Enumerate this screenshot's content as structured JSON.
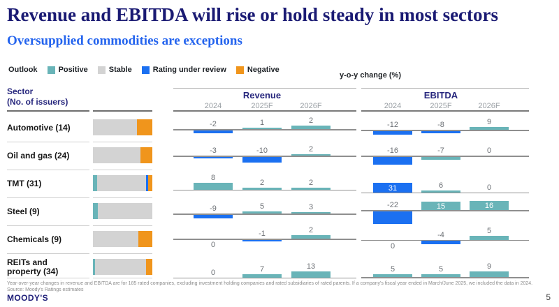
{
  "title": "Revenue and EBITDA will rise or hold steady in most sectors",
  "subtitle": "Oversupplied commodities are exceptions",
  "legend": {
    "label": "Outlook",
    "items": [
      {
        "label": "Positive",
        "color": "#69b4b8"
      },
      {
        "label": "Stable",
        "color": "#d3d3d3"
      },
      {
        "label": "Rating under review",
        "color": "#1b70f1"
      },
      {
        "label": "Negative",
        "color": "#f0951c"
      }
    ]
  },
  "axis_note": "y-o-y change (%)",
  "colors": {
    "teal": "#69b4b8",
    "blue": "#1b70f1",
    "orange": "#f0951c",
    "stable_gray": "#d3d3d3",
    "navy": "#26267d"
  },
  "table": {
    "sector_header_line1": "Sector",
    "sector_header_line2": "(No. of issuers)",
    "sections": [
      {
        "name": "Revenue"
      },
      {
        "name": "EBITDA"
      }
    ],
    "year_cols": [
      "2024",
      "2025F",
      "2026F"
    ]
  },
  "chart_data": {
    "type": "bar",
    "title": "y-o-y change (%)",
    "categories": [
      "2024",
      "2025F",
      "2026F"
    ],
    "rows": [
      {
        "sector": "Automotive (14)",
        "outlook": [
          {
            "status": "stable",
            "pct": 74
          },
          {
            "status": "negative",
            "pct": 26
          }
        ],
        "revenue": {
          "values": [
            -2,
            1,
            2
          ],
          "bar_colors": [
            "blue",
            "teal",
            "teal"
          ],
          "scale": 2.4,
          "baseline_pct": 55,
          "zero_label_below": false,
          "label_inside": [
            false,
            false,
            false
          ]
        },
        "ebitda": {
          "values": [
            -12,
            -8,
            9
          ],
          "bar_colors": [
            "blue",
            "blue",
            "teal"
          ],
          "scale": 0.45,
          "baseline_pct": 58,
          "zero_label_below": false,
          "label_inside": [
            false,
            false,
            false
          ]
        }
      },
      {
        "sector": "Oil and gas (24)",
        "outlook": [
          {
            "status": "stable",
            "pct": 80
          },
          {
            "status": "negative",
            "pct": 20
          }
        ],
        "revenue": {
          "values": [
            -3,
            -10,
            2
          ],
          "bar_colors": [
            "blue",
            "blue",
            "teal"
          ],
          "scale": 0.8,
          "baseline_pct": 50,
          "zero_label_below": false,
          "label_inside": [
            false,
            false,
            false
          ]
        },
        "ebitda": {
          "values": [
            -16,
            -7,
            0
          ],
          "bar_colors": [
            "blue",
            "teal",
            null
          ],
          "scale": 0.7,
          "baseline_pct": 50,
          "zero_label_below": false,
          "label_inside": [
            false,
            false,
            false
          ]
        }
      },
      {
        "sector": "TMT (31)",
        "outlook": [
          {
            "status": "positive",
            "pct": 7
          },
          {
            "status": "stable",
            "pct": 83
          },
          {
            "status": "review",
            "pct": 3
          },
          {
            "status": "negative",
            "pct": 7
          }
        ],
        "revenue": {
          "values": [
            8,
            2,
            2
          ],
          "bar_colors": [
            "teal",
            "teal",
            "teal"
          ],
          "scale": 1.25,
          "baseline_pct": 72,
          "zero_label_below": false,
          "label_inside": [
            false,
            false,
            false
          ]
        },
        "ebitda": {
          "values": [
            31,
            6,
            0
          ],
          "bar_colors": [
            "blue",
            "teal",
            null
          ],
          "scale": 0.43,
          "baseline_pct": 82,
          "zero_label_below": false,
          "label_inside": [
            true,
            false,
            false
          ]
        }
      },
      {
        "sector": "Steel (9)",
        "outlook": [
          {
            "status": "positive",
            "pct": 8
          },
          {
            "status": "stable",
            "pct": 92
          }
        ],
        "revenue": {
          "values": [
            -9,
            5,
            3
          ],
          "bar_colors": [
            "blue",
            "teal",
            "teal"
          ],
          "scale": 0.6,
          "baseline_pct": 58,
          "zero_label_below": false,
          "label_inside": [
            false,
            false,
            false
          ]
        },
        "ebitda": {
          "values": [
            -22,
            15,
            16
          ],
          "bar_colors": [
            "blue",
            "teal",
            "teal"
          ],
          "scale": 0.82,
          "baseline_pct": 46,
          "zero_label_below": false,
          "label_inside": [
            false,
            true,
            true
          ]
        }
      },
      {
        "sector": "Chemicals (9)",
        "outlook": [
          {
            "status": "stable",
            "pct": 76
          },
          {
            "status": "negative",
            "pct": 24
          }
        ],
        "revenue": {
          "values": [
            0,
            -1,
            2
          ],
          "bar_colors": [
            null,
            "blue",
            "teal"
          ],
          "scale": 2.4,
          "baseline_pct": 48,
          "zero_label_below": true,
          "label_inside": [
            false,
            false,
            false
          ]
        },
        "ebitda": {
          "values": [
            0,
            -4,
            5
          ],
          "bar_colors": [
            null,
            "blue",
            "teal"
          ],
          "scale": 1.1,
          "baseline_pct": 52,
          "zero_label_below": true,
          "label_inside": [
            false,
            false,
            false
          ]
        }
      },
      {
        "sector": "REITs and\nproperty (34)",
        "outlook": [
          {
            "status": "positive",
            "pct": 3
          },
          {
            "status": "stable",
            "pct": 86
          },
          {
            "status": "negative",
            "pct": 11
          }
        ],
        "revenue": {
          "values": [
            0,
            7,
            13
          ],
          "bar_colors": [
            null,
            "teal",
            "teal"
          ],
          "scale": 0.7,
          "baseline_pct": 87,
          "zero_label_below": false,
          "label_inside": [
            false,
            false,
            false
          ]
        },
        "ebitda": {
          "values": [
            5,
            5,
            9
          ],
          "bar_colors": [
            "teal",
            "teal",
            "teal"
          ],
          "scale": 0.9,
          "baseline_pct": 85,
          "zero_label_below": false,
          "label_inside": [
            false,
            false,
            false
          ]
        }
      }
    ]
  },
  "footnote_line1": "Year-over-year changes in revenue and EBITDA are for 185 rated companies, excluding investment holding companies and rated subsidiaries of rated parents. If a company's fiscal year ended in March/June 2025, we included the data in 2024.",
  "footnote_line2": "Source: Moody's Ratings estimates",
  "footer": {
    "logo": "MOODY'S",
    "page": "5"
  }
}
